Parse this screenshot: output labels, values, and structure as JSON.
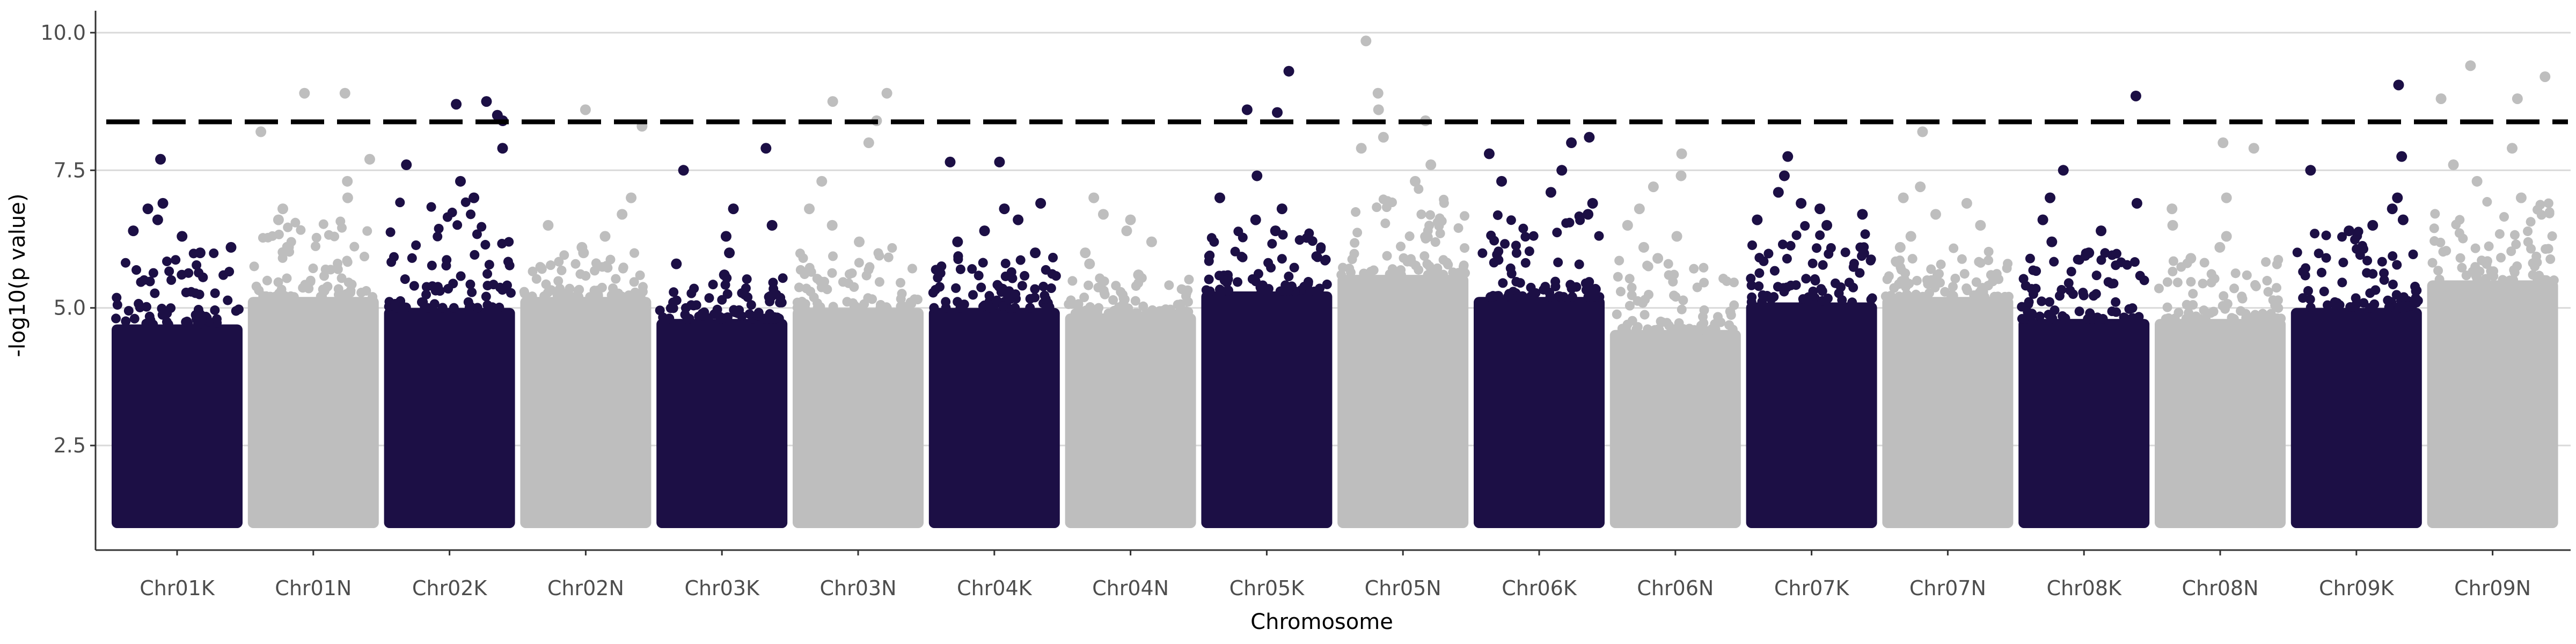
{
  "chart_data": {
    "type": "scatter",
    "subtype": "manhattan",
    "title": "",
    "xlabel": "Chromosome",
    "ylabel": "-log10(p value)",
    "ylim": [
      0.6,
      10.35
    ],
    "y_ticks": [
      2.5,
      5.0,
      7.5,
      10.0
    ],
    "y_tick_labels": [
      "2.5",
      "5.0",
      "7.5",
      "10.0"
    ],
    "grid": "horizontal major lines only",
    "legend": "none",
    "threshold": 8.38,
    "threshold_style": "dashed",
    "colors": {
      "dark": "#1c0f45",
      "light": "#bebebe",
      "threshold": "#000000",
      "grid": "#d9d9d9"
    },
    "series": [
      {
        "name": "Chr01K",
        "color_group": "dark",
        "baseline_max": 4.7,
        "top_values": [
          7.7,
          6.9,
          6.8,
          6.6,
          6.4,
          6.3,
          6.1,
          6.0
        ]
      },
      {
        "name": "Chr01N",
        "color_group": "light",
        "baseline_max": 5.2,
        "top_values": [
          8.9,
          8.9,
          8.2,
          7.7,
          7.3,
          7.0,
          6.8,
          6.6
        ]
      },
      {
        "name": "Chr02K",
        "color_group": "dark",
        "baseline_max": 5.0,
        "top_values": [
          8.75,
          8.7,
          8.5,
          8.4,
          7.9,
          7.6,
          7.3,
          7.0
        ]
      },
      {
        "name": "Chr02N",
        "color_group": "light",
        "baseline_max": 5.2,
        "top_values": [
          8.6,
          8.3,
          7.0,
          6.7,
          6.5,
          6.3,
          6.1,
          6.0
        ]
      },
      {
        "name": "Chr03K",
        "color_group": "dark",
        "baseline_max": 4.8,
        "top_values": [
          7.9,
          7.5,
          6.8,
          6.5,
          6.3,
          6.0,
          5.8,
          5.6
        ]
      },
      {
        "name": "Chr03N",
        "color_group": "light",
        "baseline_max": 5.0,
        "top_values": [
          8.9,
          8.75,
          8.4,
          8.0,
          7.3,
          6.8,
          6.5,
          6.2
        ]
      },
      {
        "name": "Chr04K",
        "color_group": "dark",
        "baseline_max": 5.0,
        "top_values": [
          7.65,
          7.65,
          6.9,
          6.8,
          6.6,
          6.4,
          6.2,
          6.0
        ]
      },
      {
        "name": "Chr04N",
        "color_group": "light",
        "baseline_max": 4.9,
        "top_values": [
          7.0,
          6.7,
          6.6,
          6.4,
          6.2,
          6.0,
          5.8,
          5.6
        ]
      },
      {
        "name": "Chr05K",
        "color_group": "dark",
        "baseline_max": 5.3,
        "top_values": [
          9.3,
          8.6,
          8.55,
          7.4,
          7.0,
          6.8,
          6.6,
          6.4
        ]
      },
      {
        "name": "Chr05N",
        "color_group": "light",
        "baseline_max": 5.6,
        "top_values": [
          9.85,
          8.9,
          8.6,
          8.4,
          8.1,
          7.9,
          7.6,
          7.3
        ]
      },
      {
        "name": "Chr06K",
        "color_group": "dark",
        "baseline_max": 5.2,
        "top_values": [
          8.1,
          8.0,
          7.8,
          7.5,
          7.3,
          7.1,
          6.9,
          6.7
        ]
      },
      {
        "name": "Chr06N",
        "color_group": "light",
        "baseline_max": 4.6,
        "top_values": [
          7.8,
          7.4,
          7.2,
          6.8,
          6.5,
          6.3,
          6.1,
          5.9
        ]
      },
      {
        "name": "Chr07K",
        "color_group": "dark",
        "baseline_max": 5.1,
        "top_values": [
          7.75,
          7.4,
          7.1,
          6.9,
          6.8,
          6.7,
          6.6,
          6.5
        ]
      },
      {
        "name": "Chr07N",
        "color_group": "light",
        "baseline_max": 5.2,
        "top_values": [
          8.2,
          7.2,
          7.0,
          6.9,
          6.7,
          6.5,
          6.3,
          6.1
        ]
      },
      {
        "name": "Chr08K",
        "color_group": "dark",
        "baseline_max": 4.8,
        "top_values": [
          8.85,
          7.5,
          7.0,
          6.9,
          6.6,
          6.4,
          6.2,
          6.0
        ]
      },
      {
        "name": "Chr08N",
        "color_group": "light",
        "baseline_max": 4.8,
        "top_values": [
          8.0,
          7.9,
          7.0,
          6.8,
          6.5,
          6.3,
          6.1,
          5.9
        ]
      },
      {
        "name": "Chr09K",
        "color_group": "dark",
        "baseline_max": 5.0,
        "top_values": [
          9.05,
          7.75,
          7.5,
          7.0,
          6.8,
          6.6,
          6.5,
          6.4
        ]
      },
      {
        "name": "Chr09N",
        "color_group": "light",
        "baseline_max": 5.5,
        "top_values": [
          9.4,
          9.2,
          8.8,
          8.8,
          7.9,
          7.6,
          7.3,
          7.0
        ]
      }
    ]
  }
}
